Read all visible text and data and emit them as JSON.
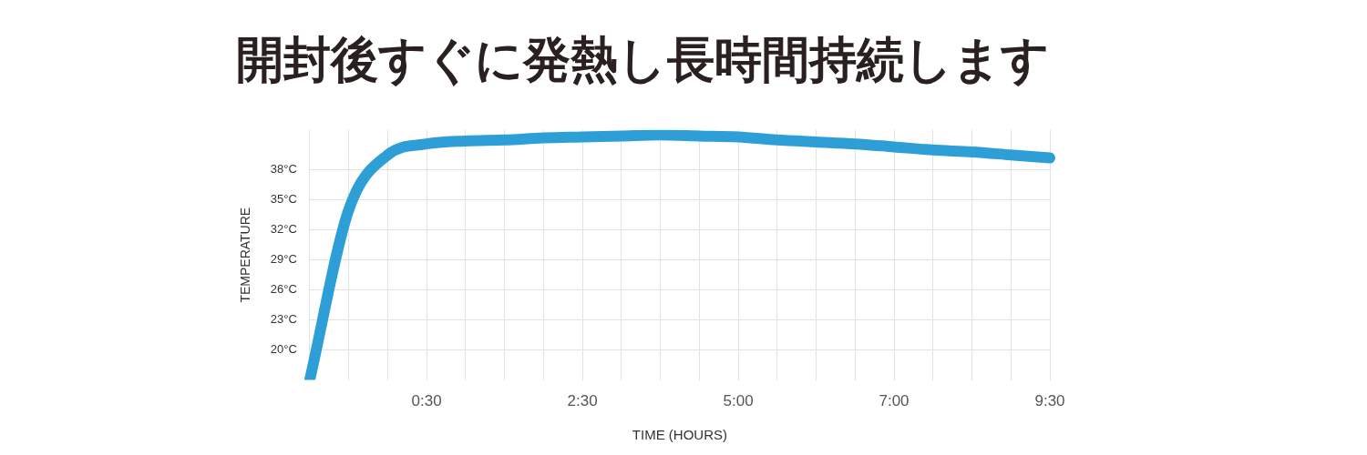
{
  "chart_data": {
    "type": "line",
    "title": "開封後すぐに発熱し長時間持続します",
    "xlabel": "TIME (HOURS)",
    "ylabel": "TEMPERATURE",
    "categories": [
      null,
      null,
      null,
      "0:30",
      null,
      null,
      null,
      "2:30",
      null,
      null,
      null,
      "5:00",
      null,
      null,
      null,
      "7:00",
      null,
      null,
      null,
      "9:30"
    ],
    "series": [
      {
        "color": "#2e9fd6",
        "values": [
          17,
          34,
          39.5,
          40.6,
          40.9,
          41.0,
          41.2,
          41.3,
          41.4,
          41.5,
          41.4,
          41.3,
          41.0,
          40.8,
          40.6,
          40.3,
          40.0,
          39.8,
          39.5,
          39.2
        ]
      }
    ],
    "ylim": [
      17,
      42
    ],
    "yticks": [
      {
        "value": 20,
        "label": "20°C"
      },
      {
        "value": 23,
        "label": "23°C"
      },
      {
        "value": 26,
        "label": "26°C"
      },
      {
        "value": 29,
        "label": "29°C"
      },
      {
        "value": 32,
        "label": "32°C"
      },
      {
        "value": 35,
        "label": "35°C"
      },
      {
        "value": 38,
        "label": "38°C"
      }
    ],
    "grid": true,
    "legend": false,
    "marker": "none",
    "line_style": "solid"
  }
}
